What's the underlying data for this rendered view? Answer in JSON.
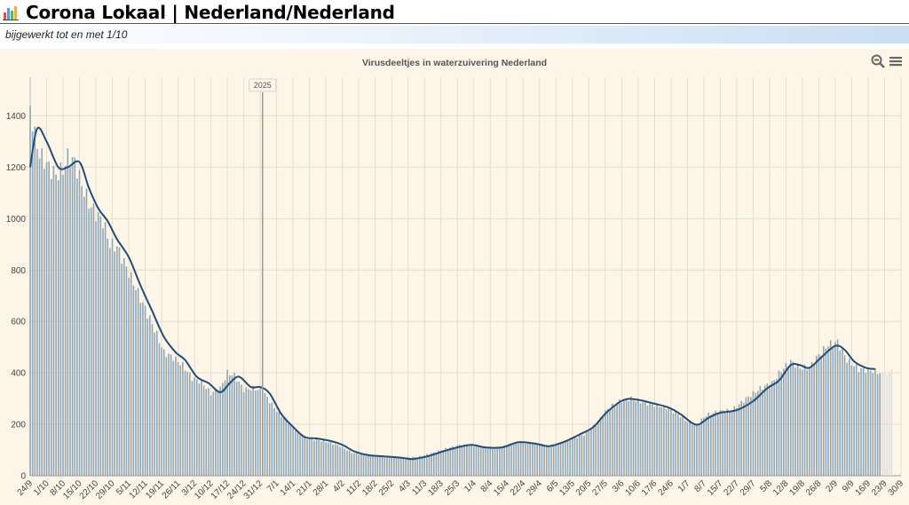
{
  "header": {
    "title": "Corona Lokaal | Nederland/Nederland",
    "subtitle": "bijgewerkt tot en met 1/10",
    "logo_icon": "bar-chart-logo-icon"
  },
  "toolbar": {
    "zoom_icon": "zoom-out-icon",
    "menu_icon": "hamburger-menu-icon"
  },
  "colors": {
    "bar": "#8fa6b6",
    "bar_pending": "#dedede",
    "line": "#1f4e79",
    "background": "#fdf5e8",
    "grid": "#e9dccb"
  },
  "chart_data": {
    "type": "bar",
    "title": "Virusdeeltjes in waterzuivering Nederland",
    "ylim": [
      0,
      1550
    ],
    "yticks": [
      0,
      200,
      400,
      600,
      800,
      1000,
      1200,
      1400
    ],
    "grid": true,
    "x_start": "2024-09-24",
    "x_end": "2025-09-30",
    "xtick_labels": [
      "24/9",
      "1/10",
      "8/10",
      "15/10",
      "22/10",
      "29/10",
      "5/11",
      "12/11",
      "19/11",
      "26/11",
      "3/12",
      "10/12",
      "17/12",
      "24/12",
      "31/12",
      "7/1",
      "14/1",
      "21/1",
      "28/1",
      "4/2",
      "11/2",
      "18/2",
      "25/2",
      "4/3",
      "11/3",
      "18/3",
      "25/3",
      "1/4",
      "8/4",
      "15/4",
      "22/4",
      "29/4",
      "6/5",
      "13/5",
      "20/5",
      "27/5",
      "3/6",
      "10/6",
      "17/6",
      "24/6",
      "1/7",
      "8/7",
      "15/7",
      "22/7",
      "29/7",
      "5/8",
      "12/8",
      "19/8",
      "26/8",
      "2/9",
      "9/9",
      "16/9",
      "23/9",
      "30/9"
    ],
    "year_marker": {
      "label": "2025",
      "date": "2025-01-01"
    },
    "series": [
      {
        "type": "bar",
        "anchors": [
          [
            "2024-09-24",
            1430
          ],
          [
            "2024-09-26",
            1320
          ],
          [
            "2024-09-28",
            1250
          ],
          [
            "2024-10-02",
            1200
          ],
          [
            "2024-10-05",
            1170
          ],
          [
            "2024-10-08",
            1190
          ],
          [
            "2024-10-10",
            1240
          ],
          [
            "2024-10-13",
            1220
          ],
          [
            "2024-10-16",
            1130
          ],
          [
            "2024-10-19",
            1060
          ],
          [
            "2024-10-22",
            1020
          ],
          [
            "2024-10-25",
            990
          ],
          [
            "2024-10-28",
            900
          ],
          [
            "2024-10-31",
            890
          ],
          [
            "2024-11-04",
            810
          ],
          [
            "2024-11-08",
            730
          ],
          [
            "2024-11-12",
            650
          ],
          [
            "2024-11-16",
            570
          ],
          [
            "2024-11-20",
            480
          ],
          [
            "2024-11-24",
            460
          ],
          [
            "2024-11-28",
            430
          ],
          [
            "2024-12-02",
            380
          ],
          [
            "2024-12-06",
            365
          ],
          [
            "2024-12-10",
            320
          ],
          [
            "2024-12-14",
            340
          ],
          [
            "2024-12-17",
            400
          ],
          [
            "2024-12-20",
            390
          ],
          [
            "2024-12-24",
            335
          ],
          [
            "2024-12-28",
            340
          ],
          [
            "2025-01-01",
            330
          ],
          [
            "2025-01-04",
            290
          ],
          [
            "2025-01-08",
            240
          ],
          [
            "2025-01-12",
            210
          ],
          [
            "2025-01-16",
            170
          ],
          [
            "2025-01-20",
            145
          ],
          [
            "2025-01-24",
            140
          ],
          [
            "2025-01-29",
            130
          ],
          [
            "2025-02-03",
            115
          ],
          [
            "2025-02-08",
            90
          ],
          [
            "2025-02-14",
            80
          ],
          [
            "2025-02-20",
            75
          ],
          [
            "2025-02-26",
            70
          ],
          [
            "2025-03-04",
            70
          ],
          [
            "2025-03-09",
            75
          ],
          [
            "2025-03-15",
            90
          ],
          [
            "2025-03-20",
            105
          ],
          [
            "2025-03-26",
            120
          ],
          [
            "2025-04-01",
            115
          ],
          [
            "2025-04-06",
            110
          ],
          [
            "2025-04-12",
            110
          ],
          [
            "2025-04-17",
            125
          ],
          [
            "2025-04-22",
            130
          ],
          [
            "2025-04-28",
            125
          ],
          [
            "2025-05-03",
            115
          ],
          [
            "2025-05-08",
            125
          ],
          [
            "2025-05-13",
            145
          ],
          [
            "2025-05-18",
            160
          ],
          [
            "2025-05-23",
            200
          ],
          [
            "2025-05-28",
            260
          ],
          [
            "2025-06-02",
            290
          ],
          [
            "2025-06-07",
            300
          ],
          [
            "2025-06-12",
            285
          ],
          [
            "2025-06-17",
            275
          ],
          [
            "2025-06-22",
            265
          ],
          [
            "2025-06-27",
            240
          ],
          [
            "2025-07-01",
            210
          ],
          [
            "2025-07-05",
            200
          ],
          [
            "2025-07-09",
            235
          ],
          [
            "2025-07-14",
            250
          ],
          [
            "2025-07-20",
            255
          ],
          [
            "2025-07-26",
            300
          ],
          [
            "2025-08-01",
            340
          ],
          [
            "2025-08-06",
            360
          ],
          [
            "2025-08-10",
            410
          ],
          [
            "2025-08-14",
            445
          ],
          [
            "2025-08-18",
            420
          ],
          [
            "2025-08-22",
            420
          ],
          [
            "2025-08-26",
            470
          ],
          [
            "2025-08-30",
            510
          ],
          [
            "2025-09-03",
            520
          ],
          [
            "2025-09-07",
            450
          ],
          [
            "2025-09-12",
            415
          ],
          [
            "2025-09-17",
            410
          ],
          [
            "2025-09-21",
            400
          ]
        ]
      },
      {
        "type": "bar-pending",
        "anchors": [
          [
            "2025-09-22",
            400
          ],
          [
            "2025-09-23",
            395
          ],
          [
            "2025-09-24",
            390
          ],
          [
            "2025-09-25",
            405
          ],
          [
            "2025-09-26",
            415
          ]
        ]
      },
      {
        "type": "line",
        "anchors": [
          [
            "2024-09-24",
            1200
          ],
          [
            "2024-09-27",
            1350
          ],
          [
            "2024-10-01",
            1300
          ],
          [
            "2024-10-06",
            1200
          ],
          [
            "2024-10-10",
            1200
          ],
          [
            "2024-10-15",
            1220
          ],
          [
            "2024-10-19",
            1120
          ],
          [
            "2024-10-23",
            1040
          ],
          [
            "2024-10-27",
            990
          ],
          [
            "2024-10-31",
            920
          ],
          [
            "2024-11-05",
            850
          ],
          [
            "2024-11-10",
            740
          ],
          [
            "2024-11-15",
            640
          ],
          [
            "2024-11-20",
            540
          ],
          [
            "2024-11-25",
            480
          ],
          [
            "2024-11-29",
            450
          ],
          [
            "2024-12-04",
            385
          ],
          [
            "2024-12-09",
            360
          ],
          [
            "2024-12-14",
            325
          ],
          [
            "2024-12-18",
            360
          ],
          [
            "2024-12-22",
            385
          ],
          [
            "2024-12-27",
            345
          ],
          [
            "2024-12-31",
            345
          ],
          [
            "2025-01-04",
            320
          ],
          [
            "2025-01-09",
            240
          ],
          [
            "2025-01-14",
            190
          ],
          [
            "2025-01-19",
            150
          ],
          [
            "2025-01-24",
            145
          ],
          [
            "2025-01-30",
            135
          ],
          [
            "2025-02-04",
            120
          ],
          [
            "2025-02-09",
            95
          ],
          [
            "2025-02-15",
            80
          ],
          [
            "2025-02-22",
            75
          ],
          [
            "2025-03-01",
            70
          ],
          [
            "2025-03-06",
            65
          ],
          [
            "2025-03-12",
            75
          ],
          [
            "2025-03-19",
            95
          ],
          [
            "2025-03-25",
            110
          ],
          [
            "2025-03-31",
            120
          ],
          [
            "2025-04-06",
            110
          ],
          [
            "2025-04-13",
            110
          ],
          [
            "2025-04-20",
            130
          ],
          [
            "2025-04-27",
            125
          ],
          [
            "2025-05-03",
            115
          ],
          [
            "2025-05-09",
            130
          ],
          [
            "2025-05-16",
            160
          ],
          [
            "2025-05-22",
            190
          ],
          [
            "2025-05-28",
            250
          ],
          [
            "2025-06-04",
            295
          ],
          [
            "2025-06-10",
            295
          ],
          [
            "2025-06-17",
            280
          ],
          [
            "2025-06-23",
            265
          ],
          [
            "2025-06-28",
            240
          ],
          [
            "2025-07-03",
            205
          ],
          [
            "2025-07-06",
            200
          ],
          [
            "2025-07-10",
            225
          ],
          [
            "2025-07-15",
            245
          ],
          [
            "2025-07-22",
            255
          ],
          [
            "2025-07-29",
            290
          ],
          [
            "2025-08-04",
            340
          ],
          [
            "2025-08-09",
            370
          ],
          [
            "2025-08-14",
            430
          ],
          [
            "2025-08-18",
            430
          ],
          [
            "2025-08-22",
            420
          ],
          [
            "2025-08-27",
            460
          ],
          [
            "2025-09-02",
            505
          ],
          [
            "2025-09-06",
            490
          ],
          [
            "2025-09-10",
            445
          ],
          [
            "2025-09-15",
            420
          ],
          [
            "2025-09-19",
            415
          ]
        ]
      }
    ]
  }
}
